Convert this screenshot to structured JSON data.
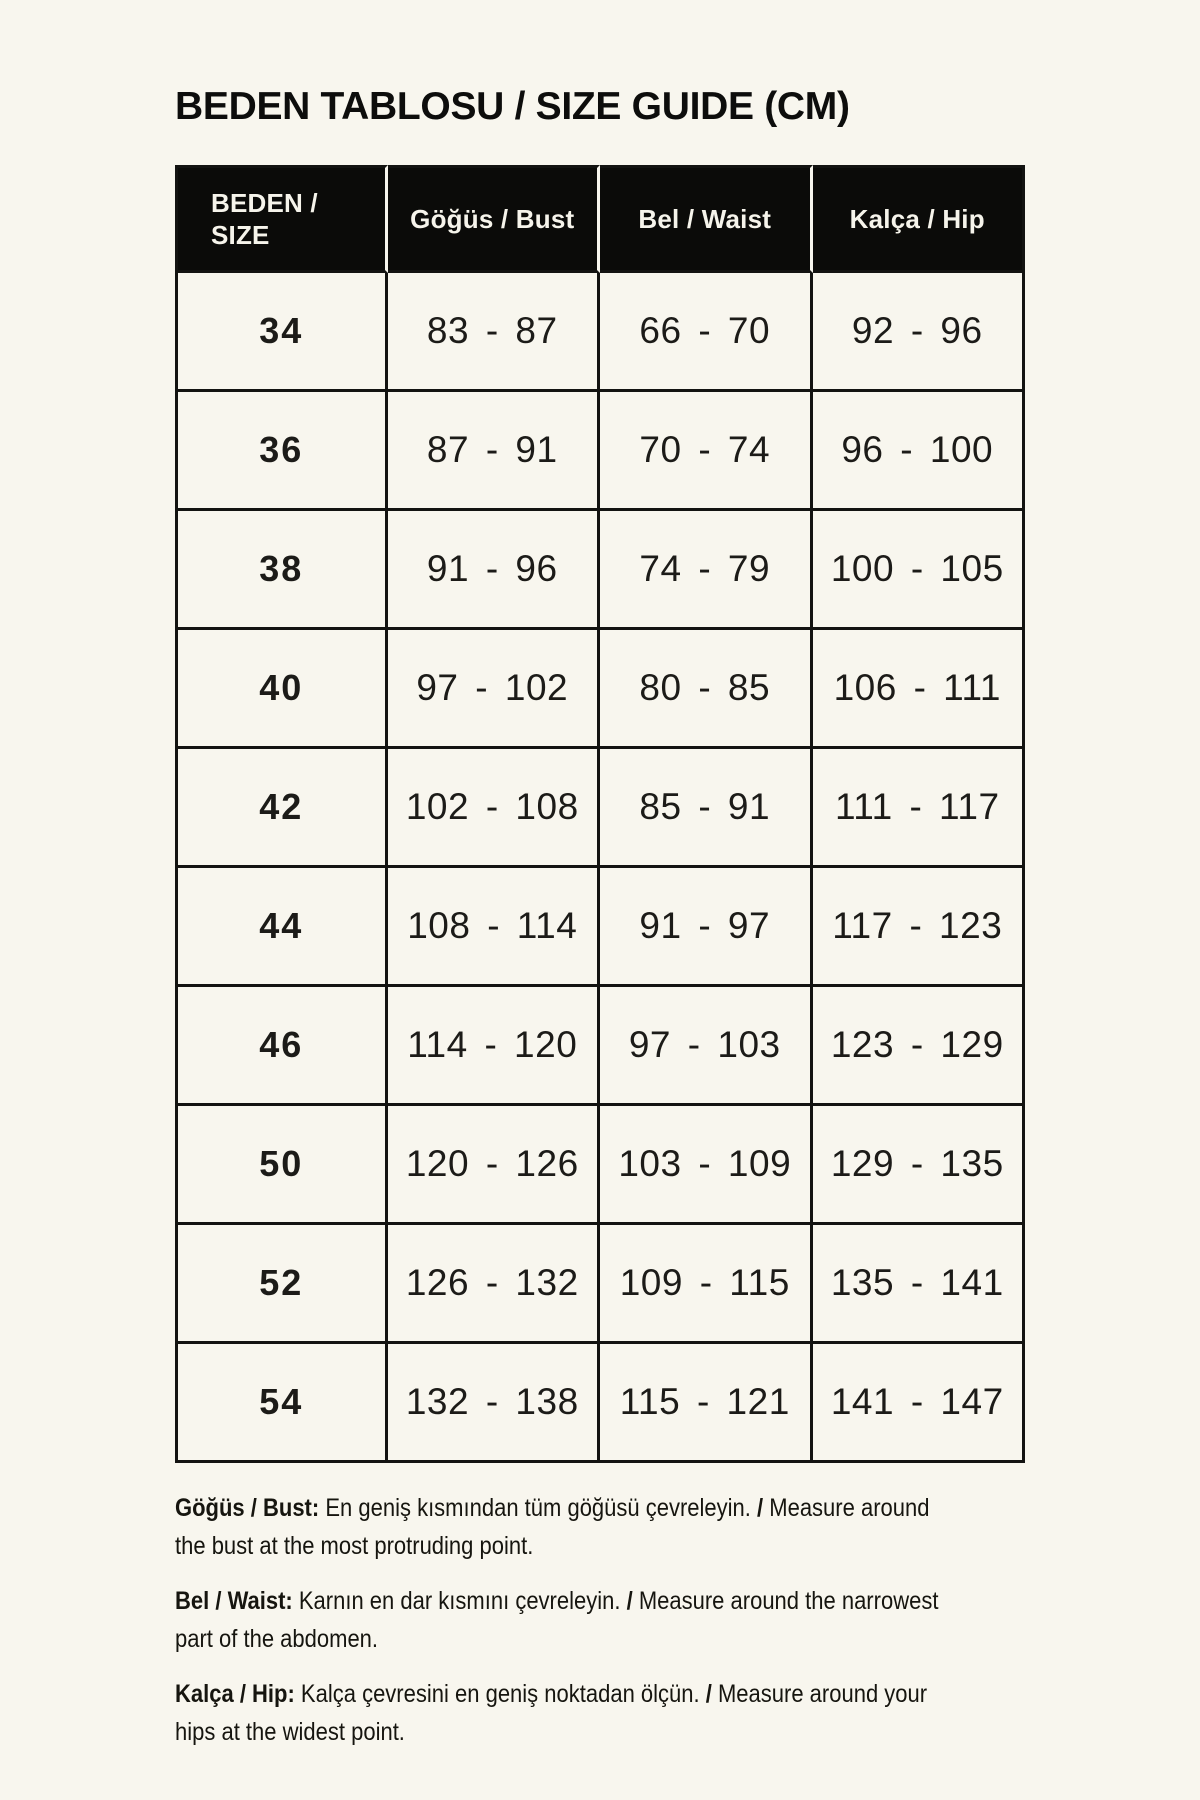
{
  "title": "BEDEN TABLOSU / SIZE GUIDE (CM)",
  "colors": {
    "background": "#f8f6ee",
    "table_border": "#131311",
    "header_background": "#0b0b09",
    "header_text": "#f6f4eb",
    "body_text": "#1b1a16"
  },
  "size_table": {
    "columns": [
      "BEDEN /\nSIZE",
      "Göğüs / Bust",
      "Bel / Waist",
      "Kalça / Hip"
    ],
    "rows": [
      {
        "size": "34",
        "bust": "83 - 87",
        "waist": "66 - 70",
        "hip": "92 - 96"
      },
      {
        "size": "36",
        "bust": "87 - 91",
        "waist": "70 - 74",
        "hip": "96 - 100"
      },
      {
        "size": "38",
        "bust": "91 - 96",
        "waist": "74 - 79",
        "hip": "100 - 105"
      },
      {
        "size": "40",
        "bust": "97 - 102",
        "waist": "80 - 85",
        "hip": "106 - 111"
      },
      {
        "size": "42",
        "bust": "102 - 108",
        "waist": "85 - 91",
        "hip": "111 - 117"
      },
      {
        "size": "44",
        "bust": "108 - 114",
        "waist": "91 - 97",
        "hip": "117 - 123"
      },
      {
        "size": "46",
        "bust": "114 - 120",
        "waist": "97 - 103",
        "hip": "123 - 129"
      },
      {
        "size": "50",
        "bust": "120 - 126",
        "waist": "103 - 109",
        "hip": "129 - 135"
      },
      {
        "size": "52",
        "bust": "126 - 132",
        "waist": "109 - 115",
        "hip": "135 - 141"
      },
      {
        "size": "54",
        "bust": "132 - 138",
        "waist": "115 - 121",
        "hip": "141 - 147"
      }
    ]
  },
  "notes": [
    {
      "lines": [
        [
          {
            "t": "Göğüs / Bust:",
            "b": true
          },
          {
            "t": " En geniş kısmından tüm göğüsü çevreleyin. ",
            "b": false
          },
          {
            "t": "/",
            "b": true
          },
          {
            "t": " Measure around",
            "b": false
          }
        ],
        [
          {
            "t": "the bust at the most protruding point.",
            "b": false
          }
        ]
      ]
    },
    {
      "lines": [
        [
          {
            "t": "Bel / Waist:",
            "b": true
          },
          {
            "t": " Karnın en dar kısmını çevreleyin. ",
            "b": false
          },
          {
            "t": "/",
            "b": true
          },
          {
            "t": " Measure around the narrowest",
            "b": false
          }
        ],
        [
          {
            "t": "part of the abdomen.",
            "b": false
          }
        ]
      ]
    },
    {
      "lines": [
        [
          {
            "t": "Kalça / Hip:",
            "b": true
          },
          {
            "t": " Kalça çevresini en geniş noktadan ölçün. ",
            "b": false
          },
          {
            "t": "/",
            "b": true
          },
          {
            "t": " Measure around your",
            "b": false
          }
        ],
        [
          {
            "t": "hips at the widest point.",
            "b": false
          }
        ]
      ]
    }
  ]
}
